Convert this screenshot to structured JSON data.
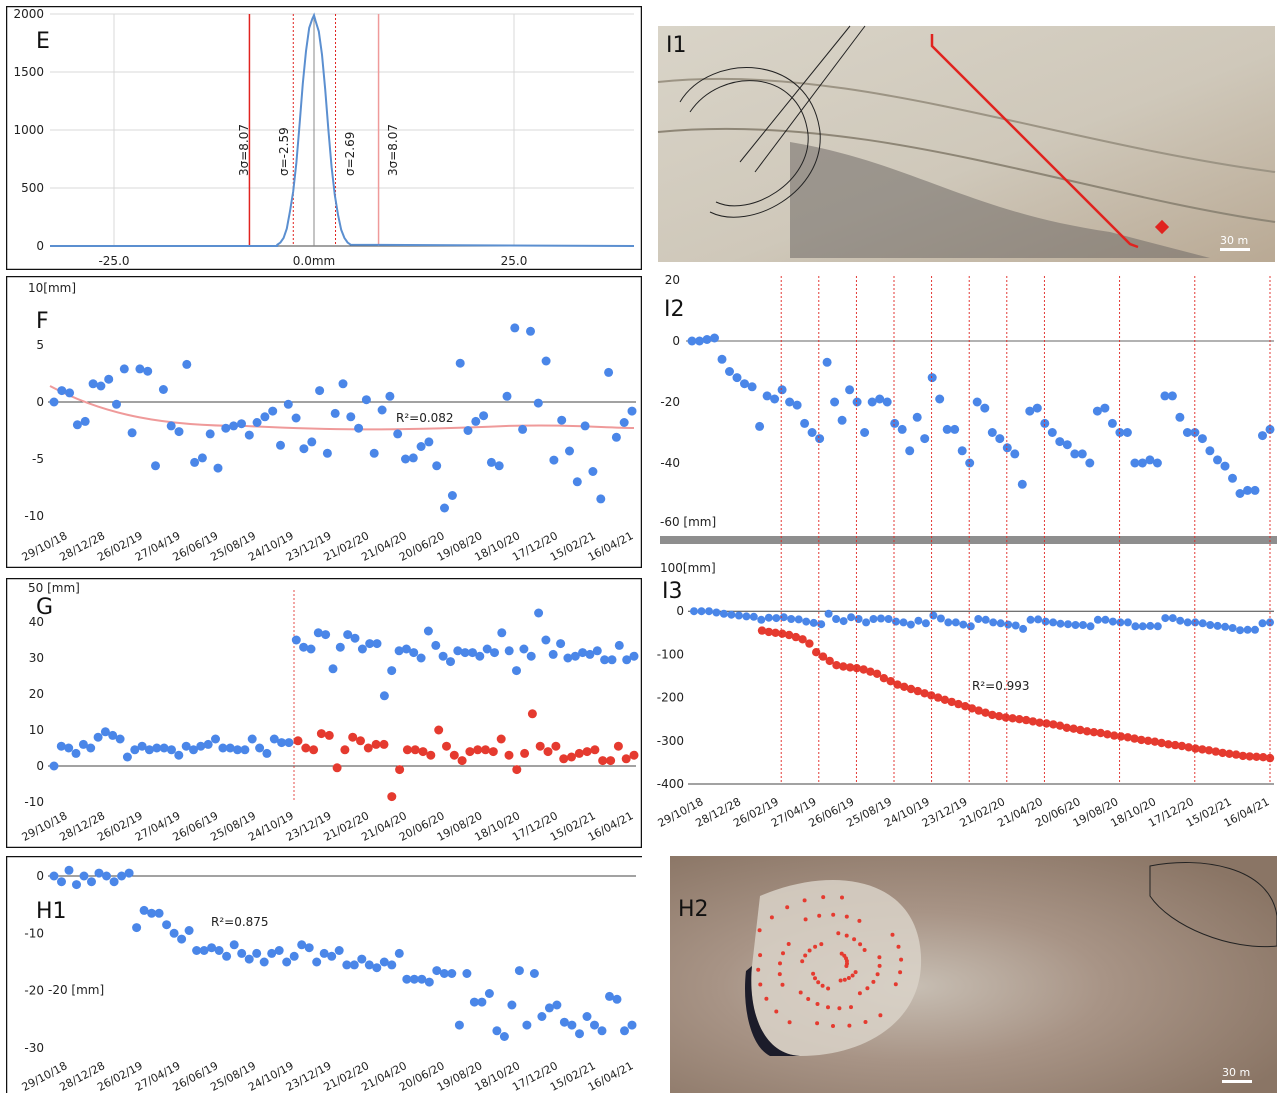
{
  "colors": {
    "blue": "#4a86e8",
    "red": "#e53a2f",
    "frame": "#111111",
    "grid": "#d8d8d8",
    "axis": "#444444",
    "pink": "#ef9a9a",
    "vline": "#e0231f",
    "curve": "#5b8fd0"
  },
  "dates": [
    "29/10/18",
    "28/12/28",
    "26/02/19",
    "27/04/19",
    "26/06/19",
    "25/08/19",
    "24/10/19",
    "23/12/19",
    "21/02/20",
    "21/04/20",
    "20/06/20",
    "19/08/20",
    "18/10/20",
    "17/12/20",
    "15/02/21",
    "16/04/21"
  ],
  "panels": {
    "E": {
      "letter": "E",
      "y_ticks": [
        "2000",
        "1500",
        "1000",
        "500",
        "0"
      ],
      "x_ticks": [
        "-25.0",
        "0.0mm",
        "25.0"
      ],
      "annotations": [
        "3σ=8.07",
        "σ=-2.59",
        "σ=2.69",
        "3σ=8.07"
      ]
    },
    "F": {
      "letter": "F",
      "unit": "10[mm]",
      "y_ticks": [
        "5",
        "0",
        "-5",
        "-10"
      ],
      "r2": "R²=0.082"
    },
    "G": {
      "letter": "G",
      "unit": "50 [mm]",
      "y_ticks": [
        "40",
        "30",
        "20",
        "10",
        "0",
        "-10"
      ]
    },
    "H1": {
      "letter": "H1",
      "unit": "-20 [mm]",
      "y_ticks": [
        "0",
        "-10",
        "-20",
        "-30"
      ],
      "r2": "R²=0.875"
    },
    "I1": {
      "letter": "I1",
      "scale": "30 m"
    },
    "I2": {
      "letter": "I2",
      "unit": "-60 [mm]",
      "y_ticks": [
        "20",
        "0",
        "-20",
        "-40"
      ]
    },
    "I3": {
      "letter": "I3",
      "unit": "100[mm]",
      "y_ticks": [
        "0",
        "-100",
        "-200",
        "-300",
        "-400"
      ],
      "r2": "R²=0.993"
    },
    "H2": {
      "letter": "H2",
      "scale": "30 m"
    }
  },
  "chart_data": [
    {
      "panel": "E",
      "type": "line",
      "x": [
        -4.6,
        -4.2,
        -3.8,
        -3.4,
        -3.0,
        -2.6,
        -2.2,
        -1.8,
        -1.4,
        -1.0,
        -0.6,
        -0.2,
        0.0,
        0.2,
        0.6,
        1.0,
        1.4,
        1.8,
        2.2,
        2.6,
        3.0,
        3.4,
        3.8,
        4.2,
        4.6
      ],
      "y": [
        10,
        30,
        70,
        150,
        300,
        470,
        720,
        1050,
        1400,
        1680,
        1880,
        1960,
        1990,
        1940,
        1850,
        1650,
        1350,
        1000,
        680,
        440,
        270,
        140,
        70,
        30,
        10
      ],
      "xlim": [
        -33,
        40
      ],
      "ylim": [
        0,
        2000
      ],
      "vlines": [
        {
          "x": -8.07,
          "style": "solid"
        },
        {
          "x": -2.59,
          "style": "dotted"
        },
        {
          "x": 0,
          "style": "gray"
        },
        {
          "x": 2.69,
          "style": "dotted"
        },
        {
          "x": 8.07,
          "style": "pink"
        }
      ]
    },
    {
      "panel": "F",
      "type": "scatter",
      "ylim": [
        -10,
        10
      ],
      "trend": "R²=0.082",
      "values": [
        0,
        1,
        0.8,
        -2,
        -1.7,
        1.6,
        1.4,
        2,
        -0.2,
        2.9,
        -2.7,
        2.9,
        2.7,
        -5.6,
        1.1,
        -2.1,
        -2.6,
        3.3,
        -5.3,
        -4.9,
        -2.8,
        -5.8,
        -2.3,
        -2.1,
        -1.9,
        -2.9,
        -1.8,
        -1.3,
        -0.8,
        -3.8,
        -0.2,
        -1.4,
        -4.1,
        -3.5,
        1,
        -4.5,
        -1,
        1.6,
        -1.3,
        -2.3,
        0.2,
        -4.5,
        -0.7,
        0.5,
        -2.8,
        -5,
        -4.9,
        -3.9,
        -3.5,
        -5.6,
        -9.3,
        -8.2,
        3.4,
        -2.5,
        -1.7,
        -1.2,
        -5.3,
        -5.6,
        0.5,
        6.5,
        -2.4,
        6.2,
        -0.1,
        3.6,
        -5.1,
        -1.6,
        -4.3,
        -7,
        -2.1,
        -6.1,
        -8.5,
        2.6,
        -3.1,
        -1.8,
        -0.8
      ]
    },
    {
      "panel": "G",
      "type": "scatter",
      "ylim": [
        -10,
        50
      ],
      "series": [
        {
          "name": "blue",
          "values": [
            0,
            5.5,
            5,
            3.5,
            6,
            5,
            8,
            9.5,
            8.5,
            7.5,
            2.5,
            4.5,
            5.5,
            4.5,
            5,
            5,
            4.5,
            3,
            5.5,
            4.5,
            5.5,
            6,
            7.5,
            5,
            5,
            4.5,
            4.5,
            7.5,
            5,
            3.5,
            7.5,
            6.5,
            6.5,
            35,
            33,
            32.5,
            37,
            36.5,
            27,
            33,
            36.5,
            35.5,
            32.5,
            34,
            34,
            19.5,
            26.5,
            32,
            32.5,
            31.5,
            30,
            37.5,
            33.5,
            30.5,
            29,
            32,
            31.5,
            31.5,
            30.5,
            32.5,
            31.5,
            37,
            32,
            26.5,
            32.5,
            30.5,
            42.5,
            35,
            31,
            34,
            30,
            30.5,
            31.5,
            31,
            32,
            29.5,
            29.5,
            33.5,
            29.5,
            30.5
          ]
        },
        {
          "name": "red",
          "values": [
            7,
            5,
            4.5,
            9,
            8.5,
            -0.5,
            4.5,
            8,
            7,
            5,
            6,
            6,
            -8.5,
            -1,
            4.5,
            4.5,
            4,
            3,
            10,
            5.5,
            3,
            1.5,
            4,
            4.5,
            4.5,
            4,
            7.5,
            3,
            -1,
            3.5,
            14.5,
            5.5,
            4,
            5.5,
            2,
            2.5,
            3.5,
            4,
            4.5,
            1.5,
            1.5,
            5.5,
            2,
            3
          ]
        }
      ]
    },
    {
      "panel": "H1",
      "type": "scatter",
      "ylim": [
        -30,
        0
      ],
      "trend": "R²=0.875",
      "values": [
        0,
        -1,
        1,
        -1.5,
        0,
        -1,
        0.5,
        0,
        -1,
        0,
        0.5,
        -9,
        -6,
        -6.5,
        -6.5,
        -8.5,
        -10,
        -11,
        -9.5,
        -13,
        -13,
        -12.5,
        -13,
        -14,
        -12,
        -13.5,
        -14.5,
        -13.5,
        -15,
        -13.5,
        -13,
        -15,
        -14,
        -12,
        -12.5,
        -15,
        -13.5,
        -14,
        -13,
        -15.5,
        -15.5,
        -14.5,
        -15.5,
        -16,
        -15,
        -15.5,
        -13.5,
        -18,
        -18,
        -18,
        -18.5,
        -16.5,
        -17,
        -17,
        -26,
        -17,
        -22,
        -22,
        -20.5,
        -27,
        -28,
        -22.5,
        -16.5,
        -26,
        -17,
        -24.5,
        -23,
        -22.5,
        -25.5,
        -26,
        -27.5,
        -24.5,
        -26,
        -27,
        -21,
        -21.5,
        -27,
        -26
      ]
    },
    {
      "panel": "I2",
      "type": "scatter",
      "ylim": [
        -60,
        20
      ],
      "values": [
        0,
        0,
        0.5,
        1,
        -6,
        -10,
        -12,
        -14,
        -15,
        -28,
        -18,
        -19,
        -16,
        -20,
        -21,
        -27,
        -30,
        -32,
        -7,
        -20,
        -26,
        -16,
        -20,
        -30,
        -20,
        -19,
        -20,
        -27,
        -29,
        -36,
        -25,
        -32,
        -12,
        -19,
        -29,
        -29,
        -36,
        -40,
        -20,
        -22,
        -30,
        -32,
        -35,
        -37,
        -47,
        -23,
        -22,
        -27,
        -30,
        -33,
        -34,
        -37,
        -37,
        -40,
        -23,
        -22,
        -27,
        -30,
        -30,
        -40,
        -40,
        -39,
        -40,
        -18,
        -18,
        -25,
        -30,
        -30,
        -32,
        -36,
        -39,
        -41,
        -45,
        -50,
        -49,
        -49,
        -31,
        -29
      ],
      "event_lines": [
        "26/02/19",
        "27/04/19",
        "26/06/19",
        "25/08/19",
        "24/10/19",
        "23/12/19",
        "21/02/20",
        "21/04/20",
        "19/08/20",
        "17/12/20",
        "16/04/21"
      ]
    },
    {
      "panel": "I3",
      "type": "scatter",
      "ylim": [
        -400,
        100
      ],
      "trend": "R²=0.993",
      "series": [
        {
          "name": "blue",
          "values": [
            0,
            0,
            0,
            -3,
            -6,
            -8,
            -10,
            -12,
            -13,
            -20,
            -15,
            -16,
            -14,
            -18,
            -19,
            -24,
            -27,
            -30,
            -6,
            -18,
            -23,
            -14,
            -18,
            -26,
            -18,
            -17,
            -18,
            -24,
            -26,
            -31,
            -22,
            -28,
            -10,
            -17,
            -26,
            -26,
            -31,
            -35,
            -18,
            -20,
            -26,
            -28,
            -31,
            -33,
            -41,
            -20,
            -19,
            -24,
            -26,
            -29,
            -30,
            -32,
            -32,
            -35,
            -20,
            -20,
            -24,
            -26,
            -26,
            -35,
            -35,
            -34,
            -35,
            -16,
            -16,
            -22,
            -26,
            -26,
            -28,
            -32,
            -34,
            -36,
            -39,
            -44,
            -43,
            -43,
            -28,
            -26
          ]
        },
        {
          "name": "red",
          "values": [
            -45,
            -48,
            -50,
            -52,
            -55,
            -60,
            -65,
            -75,
            -95,
            -105,
            -115,
            -125,
            -128,
            -130,
            -132,
            -135,
            -140,
            -145,
            -155,
            -162,
            -170,
            -175,
            -180,
            -185,
            -190,
            -195,
            -200,
            -205,
            -210,
            -215,
            -220,
            -225,
            -230,
            -235,
            -240,
            -243,
            -246,
            -248,
            -250,
            -252,
            -255,
            -258,
            -260,
            -262,
            -265,
            -270,
            -272,
            -275,
            -278,
            -280,
            -282,
            -285,
            -288,
            -290,
            -292,
            -295,
            -298,
            -300,
            -302,
            -305,
            -308,
            -310,
            -312,
            -315,
            -318,
            -320,
            -322,
            -325,
            -328,
            -330,
            -332,
            -335,
            -336,
            -337,
            -338,
            -340
          ]
        }
      ]
    }
  ]
}
